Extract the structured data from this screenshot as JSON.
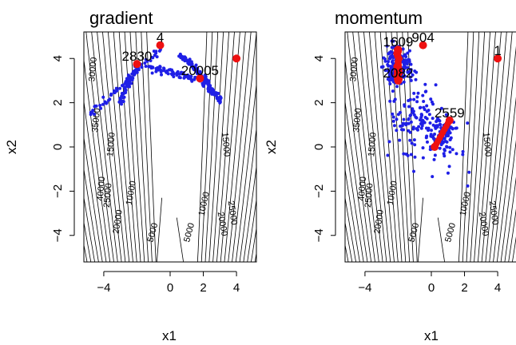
{
  "chart_data": [
    {
      "type": "scatter",
      "title": "gradient",
      "xlabel": "x1",
      "ylabel": "x2",
      "xlim": [
        -5.2,
        5.2
      ],
      "ylim": [
        -5.2,
        5.2
      ],
      "xticks": [
        "−4",
        "0",
        "2",
        "4"
      ],
      "yticks": [
        "−4",
        "−2",
        "0",
        "2",
        "4"
      ],
      "contour_labels": [
        "5000",
        "5000",
        "10000",
        "10000",
        "15000",
        "15000",
        "20000",
        "20000",
        "25000",
        "25000",
        "30000",
        "35000",
        "40000"
      ],
      "highlight_points": [
        {
          "x": -2.0,
          "y": 3.75,
          "label": "2830"
        },
        {
          "x": -0.6,
          "y": 4.6,
          "label": "4"
        },
        {
          "x": 1.8,
          "y": 3.1,
          "label": "20005"
        },
        {
          "x": 4.0,
          "y": 4.0,
          "label": ""
        }
      ],
      "path_segments": [
        {
          "from": [
            -4.9,
            1.4
          ],
          "to": [
            -0.6,
            4.4
          ]
        },
        {
          "from": [
            -3.0,
            2.0
          ],
          "to": [
            -2.0,
            3.7
          ]
        },
        {
          "from": [
            -1.2,
            3.6
          ],
          "to": [
            1.5,
            3.1
          ]
        },
        {
          "from": [
            0.6,
            4.2
          ],
          "to": [
            2.3,
            2.9
          ]
        },
        {
          "from": [
            1.8,
            3.1
          ],
          "to": [
            3.1,
            2.1
          ]
        }
      ],
      "series_color": "#1f1fe6",
      "highlight_color": "#ee1111"
    },
    {
      "type": "scatter",
      "title": "momentum",
      "xlabel": "x1",
      "ylabel": "x2",
      "xlim": [
        -5.2,
        5.2
      ],
      "ylim": [
        -5.2,
        5.2
      ],
      "xticks": [
        "−4",
        "0",
        "2",
        "4"
      ],
      "yticks": [
        "−4",
        "−2",
        "0",
        "2",
        "4"
      ],
      "contour_labels": [
        "5000",
        "5000",
        "10000",
        "10000",
        "15000",
        "15000",
        "20000",
        "20000",
        "25000",
        "25000",
        "30000",
        "35000",
        "40000"
      ],
      "highlight_points": [
        {
          "x": -2.0,
          "y": 4.4,
          "label": "1609"
        },
        {
          "x": -2.0,
          "y": 3.0,
          "label": "2082"
        },
        {
          "x": -0.5,
          "y": 4.6,
          "label": "904"
        },
        {
          "x": 1.1,
          "y": 1.2,
          "label": "2559"
        },
        {
          "x": 0.2,
          "y": 0.0,
          "label": ""
        },
        {
          "x": 4.0,
          "y": 4.0,
          "label": "1"
        }
      ],
      "cluster_regions": [
        {
          "cx": -2.0,
          "cy": 3.6,
          "sx": 0.8,
          "sy": 0.9,
          "n": 180
        },
        {
          "cx": -1.0,
          "cy": 1.5,
          "sx": 1.4,
          "sy": 1.6,
          "n": 90
        },
        {
          "cx": 0.6,
          "cy": 0.6,
          "sx": 0.9,
          "sy": 0.9,
          "n": 90
        },
        {
          "cx": 0.0,
          "cy": 0.0,
          "sx": 2.5,
          "sy": 2.5,
          "n": 40
        }
      ],
      "series_color": "#1f1fe6",
      "highlight_color": "#ee1111"
    }
  ]
}
